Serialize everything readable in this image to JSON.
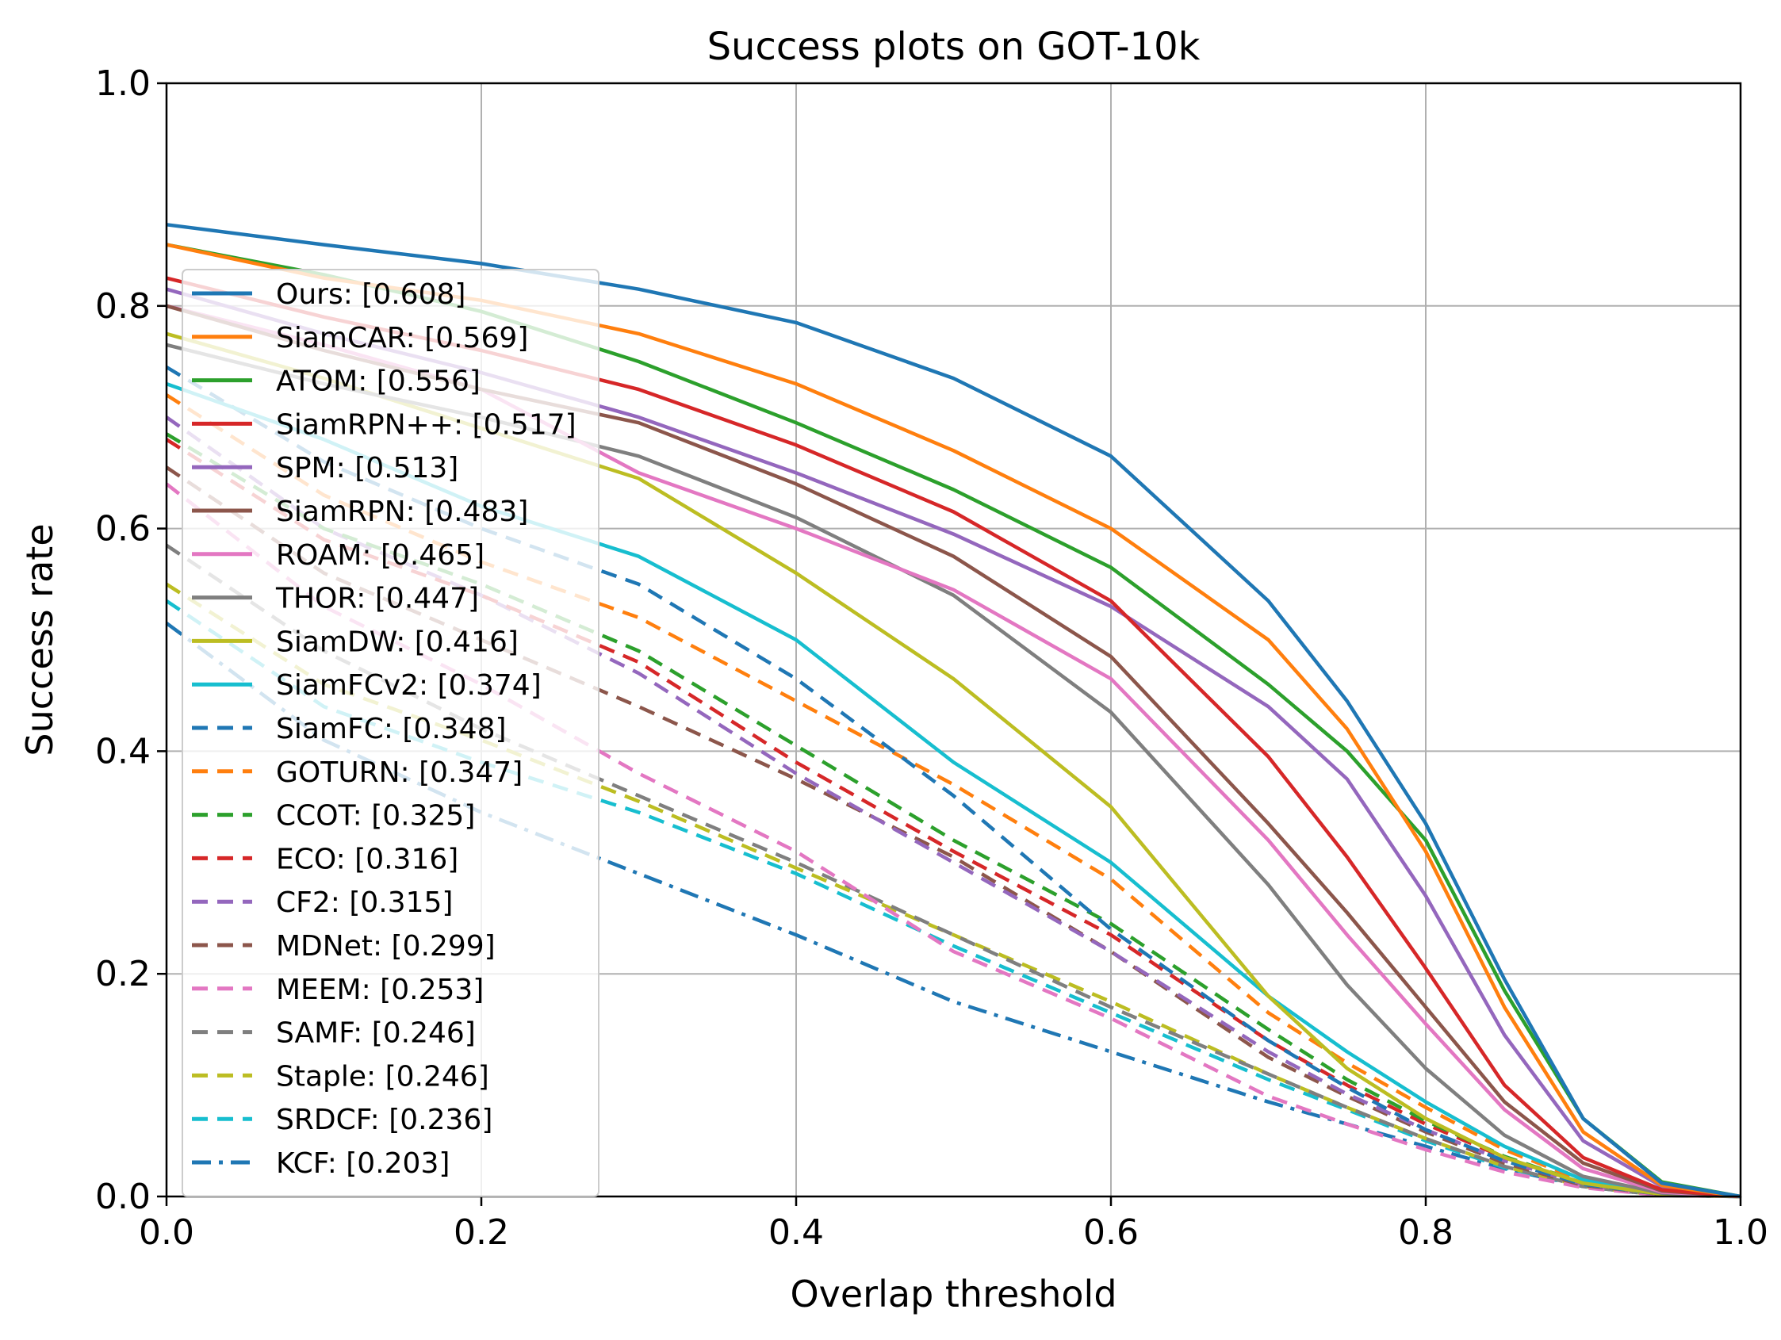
{
  "chart_data": {
    "type": "line",
    "title": "Success plots on GOT-10k",
    "xlabel": "Overlap threshold",
    "ylabel": "Success rate",
    "xlim": [
      0,
      1
    ],
    "ylim": [
      0,
      1
    ],
    "xticks": [
      "0.0",
      "0.2",
      "0.4",
      "0.6",
      "0.8",
      "1.0"
    ],
    "yticks": [
      "0.0",
      "0.2",
      "0.4",
      "0.6",
      "0.8",
      "1.0"
    ],
    "grid": true,
    "legend_position": "upper-left",
    "x": [
      0,
      0.1,
      0.2,
      0.3,
      0.4,
      0.5,
      0.6,
      0.7,
      0.75,
      0.8,
      0.85,
      0.9,
      0.95,
      1.0
    ],
    "series": [
      {
        "name": "Ours",
        "label": "Ours: [0.608]",
        "color": "#1f77b4",
        "dash": "solid",
        "values": [
          0.873,
          0.855,
          0.838,
          0.815,
          0.785,
          0.735,
          0.665,
          0.535,
          0.445,
          0.335,
          0.195,
          0.07,
          0.012,
          0.0
        ]
      },
      {
        "name": "SiamCAR",
        "label": "SiamCAR: [0.569]",
        "color": "#ff7f0e",
        "dash": "solid",
        "values": [
          0.855,
          0.825,
          0.805,
          0.775,
          0.73,
          0.67,
          0.6,
          0.5,
          0.42,
          0.31,
          0.17,
          0.058,
          0.01,
          0.0
        ]
      },
      {
        "name": "ATOM",
        "label": "ATOM: [0.556]",
        "color": "#2ca02c",
        "dash": "solid",
        "values": [
          0.855,
          0.828,
          0.795,
          0.75,
          0.695,
          0.635,
          0.565,
          0.46,
          0.4,
          0.32,
          0.185,
          0.07,
          0.013,
          0.0
        ]
      },
      {
        "name": "SiamRPN++",
        "label": "SiamRPN++: [0.517]",
        "color": "#d62728",
        "dash": "solid",
        "values": [
          0.825,
          0.79,
          0.76,
          0.725,
          0.675,
          0.615,
          0.535,
          0.395,
          0.305,
          0.205,
          0.1,
          0.035,
          0.006,
          0.0
        ]
      },
      {
        "name": "SPM",
        "label": "SPM: [0.513]",
        "color": "#9467bd",
        "dash": "solid",
        "values": [
          0.815,
          0.775,
          0.74,
          0.7,
          0.65,
          0.595,
          0.53,
          0.44,
          0.375,
          0.27,
          0.145,
          0.05,
          0.009,
          0.0
        ]
      },
      {
        "name": "SiamRPN",
        "label": "SiamRPN: [0.483]",
        "color": "#8c564b",
        "dash": "solid",
        "values": [
          0.8,
          0.76,
          0.725,
          0.695,
          0.64,
          0.575,
          0.485,
          0.335,
          0.255,
          0.17,
          0.085,
          0.03,
          0.005,
          0.0
        ]
      },
      {
        "name": "ROAM",
        "label": "ROAM: [0.465]",
        "color": "#e377c2",
        "dash": "solid",
        "values": [
          0.8,
          0.765,
          0.725,
          0.65,
          0.6,
          0.545,
          0.465,
          0.32,
          0.235,
          0.155,
          0.078,
          0.025,
          0.004,
          0.0
        ]
      },
      {
        "name": "THOR",
        "label": "THOR: [0.447]",
        "color": "#7f7f7f",
        "dash": "solid",
        "values": [
          0.765,
          0.73,
          0.7,
          0.665,
          0.61,
          0.54,
          0.435,
          0.28,
          0.19,
          0.115,
          0.055,
          0.018,
          0.003,
          0.0
        ]
      },
      {
        "name": "SiamDW",
        "label": "SiamDW: [0.416]",
        "color": "#bcbd22",
        "dash": "solid",
        "values": [
          0.775,
          0.735,
          0.69,
          0.645,
          0.56,
          0.465,
          0.35,
          0.18,
          0.115,
          0.07,
          0.035,
          0.012,
          0.002,
          0.0
        ]
      },
      {
        "name": "SiamFCv2",
        "label": "SiamFCv2: [0.374]",
        "color": "#17becf",
        "dash": "solid",
        "values": [
          0.73,
          0.68,
          0.62,
          0.575,
          0.5,
          0.39,
          0.3,
          0.18,
          0.13,
          0.085,
          0.045,
          0.015,
          0.003,
          0.0
        ]
      },
      {
        "name": "SiamFC",
        "label": "SiamFC: [0.348]",
        "color": "#1f77b4",
        "dash": "dashed",
        "values": [
          0.745,
          0.66,
          0.6,
          0.55,
          0.465,
          0.36,
          0.24,
          0.14,
          0.098,
          0.06,
          0.032,
          0.011,
          0.002,
          0.0
        ]
      },
      {
        "name": "GOTURN",
        "label": "GOTURN: [0.347]",
        "color": "#ff7f0e",
        "dash": "dashed",
        "values": [
          0.72,
          0.63,
          0.57,
          0.52,
          0.445,
          0.37,
          0.285,
          0.165,
          0.12,
          0.08,
          0.042,
          0.014,
          0.002,
          0.0
        ]
      },
      {
        "name": "CCOT",
        "label": "CCOT: [0.325]",
        "color": "#2ca02c",
        "dash": "dashed",
        "values": [
          0.685,
          0.6,
          0.55,
          0.49,
          0.405,
          0.32,
          0.245,
          0.15,
          0.105,
          0.068,
          0.036,
          0.012,
          0.002,
          0.0
        ]
      },
      {
        "name": "ECO",
        "label": "ECO: [0.316]",
        "color": "#d62728",
        "dash": "dashed",
        "values": [
          0.68,
          0.59,
          0.54,
          0.48,
          0.39,
          0.31,
          0.235,
          0.14,
          0.1,
          0.065,
          0.035,
          0.012,
          0.002,
          0.0
        ]
      },
      {
        "name": "CF2",
        "label": "CF2: [0.315]",
        "color": "#9467bd",
        "dash": "dashed",
        "values": [
          0.7,
          0.6,
          0.54,
          0.47,
          0.38,
          0.3,
          0.22,
          0.13,
          0.092,
          0.06,
          0.032,
          0.011,
          0.002,
          0.0
        ]
      },
      {
        "name": "MDNet",
        "label": "MDNet: [0.299]",
        "color": "#8c564b",
        "dash": "dashed",
        "values": [
          0.655,
          0.56,
          0.5,
          0.44,
          0.375,
          0.305,
          0.22,
          0.125,
          0.09,
          0.058,
          0.03,
          0.01,
          0.002,
          0.0
        ]
      },
      {
        "name": "MEEM",
        "label": "MEEM: [0.253]",
        "color": "#e377c2",
        "dash": "dashed",
        "values": [
          0.64,
          0.53,
          0.46,
          0.38,
          0.31,
          0.22,
          0.16,
          0.09,
          0.065,
          0.042,
          0.022,
          0.008,
          0.001,
          0.0
        ]
      },
      {
        "name": "SAMF",
        "label": "SAMF: [0.246]",
        "color": "#7f7f7f",
        "dash": "dashed",
        "values": [
          0.585,
          0.49,
          0.42,
          0.36,
          0.3,
          0.235,
          0.17,
          0.11,
          0.08,
          0.052,
          0.027,
          0.009,
          0.001,
          0.0
        ]
      },
      {
        "name": "Staple",
        "label": "Staple: [0.246]",
        "color": "#bcbd22",
        "dash": "dashed",
        "values": [
          0.55,
          0.46,
          0.41,
          0.355,
          0.295,
          0.235,
          0.175,
          0.11,
          0.08,
          0.052,
          0.027,
          0.009,
          0.001,
          0.0
        ]
      },
      {
        "name": "SRDCF",
        "label": "SRDCF: [0.236]",
        "color": "#17becf",
        "dash": "dashed",
        "values": [
          0.535,
          0.44,
          0.39,
          0.345,
          0.29,
          0.225,
          0.165,
          0.105,
          0.078,
          0.05,
          0.026,
          0.009,
          0.001,
          0.0
        ]
      },
      {
        "name": "KCF",
        "label": "KCF: [0.203]",
        "color": "#1f77b4",
        "dash": "dashdot",
        "values": [
          0.515,
          0.41,
          0.345,
          0.29,
          0.235,
          0.175,
          0.13,
          0.085,
          0.065,
          0.045,
          0.025,
          0.009,
          0.001,
          0.0
        ]
      }
    ]
  }
}
